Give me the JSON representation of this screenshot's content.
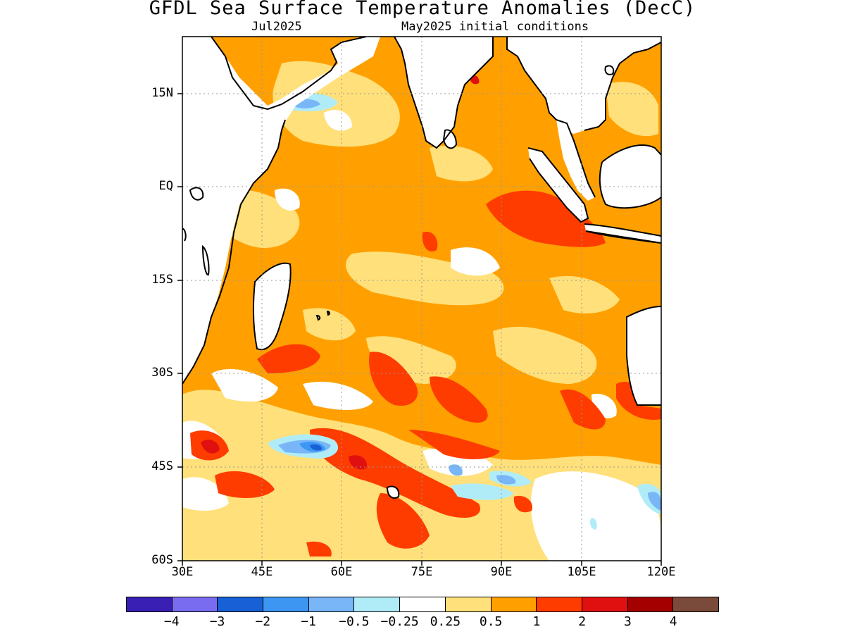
{
  "title": "GFDL Sea Surface Temperature Anomalies (DecC)",
  "subtitle_left": "Jul2025",
  "subtitle_right": "May2025 initial conditions",
  "axes": {
    "y_ticks": [
      "15N",
      "EQ",
      "15S",
      "30S",
      "45S",
      "60S"
    ],
    "x_ticks": [
      "30E",
      "45E",
      "60E",
      "75E",
      "90E",
      "105E",
      "120E"
    ],
    "lon_range": [
      30,
      120
    ],
    "lat_range": [
      -60,
      24
    ],
    "grid": true
  },
  "colorbar": {
    "colors": [
      "#3a1fb5",
      "#7a6cf0",
      "#1760d6",
      "#3d96f2",
      "#78b6f7",
      "#b0ecf8",
      "#ffffff",
      "#ffe07a",
      "#ffa000",
      "#ff3c00",
      "#e01010",
      "#a50000",
      "#7a4a3a"
    ],
    "labels": [
      "−4",
      "−3",
      "−2",
      "−1",
      "−0.5",
      "−0.25",
      "0.25",
      "0.5",
      "1",
      "2",
      "3",
      "4"
    ]
  },
  "colors": {
    "ocean_default": "#ffa000",
    "weak_positive": "#ffe07a",
    "neutral": "#ffffff",
    "strong_positive": "#ff3c00",
    "very_strong": "#e01010",
    "negative_light": "#b0ecf8",
    "negative_mid": "#78b6f7",
    "negative_strong": "#3d96f2",
    "negative_deep": "#1760d6",
    "land": "#ffffff",
    "coast": "#000000"
  }
}
